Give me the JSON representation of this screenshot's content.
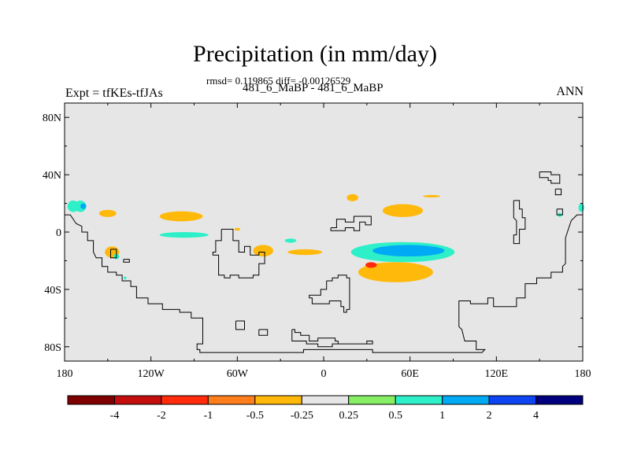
{
  "chart_data": {
    "type": "heatmap",
    "title": "Precipitation (in mm/day)",
    "stats": "rmsd= 0.119865 diff= -0.00126529",
    "subtitle": "481_6_MaBP - 481_6_MaBP",
    "left_label": "Expt = tfKEs-tfJAs",
    "right_label": "ANN",
    "x_ticks": [
      {
        "value": -180,
        "label": "180"
      },
      {
        "value": -120,
        "label": "120W"
      },
      {
        "value": -60,
        "label": "60W"
      },
      {
        "value": 0,
        "label": "0"
      },
      {
        "value": 60,
        "label": "60E"
      },
      {
        "value": 120,
        "label": "120E"
      },
      {
        "value": 180,
        "label": "180"
      }
    ],
    "y_ticks": [
      {
        "value": 80,
        "label": "80N"
      },
      {
        "value": 40,
        "label": "40N"
      },
      {
        "value": 0,
        "label": "0"
      },
      {
        "value": -40,
        "label": "40S"
      },
      {
        "value": -80,
        "label": "80S"
      }
    ],
    "xlim": [
      -180,
      180
    ],
    "ylim": [
      -90,
      90
    ],
    "background_color": "#e6e6e6",
    "colorbar": {
      "labels": [
        "-4",
        "-2",
        "-1",
        "-0.5",
        "-0.25",
        "0.25",
        "0.5",
        "1",
        "2",
        "4"
      ],
      "colors": [
        "#7f0000",
        "#c40e0e",
        "#ff2b0b",
        "#ff7e1c",
        "#ffb90a",
        "#e6e6e6",
        "#86ef64",
        "#2ef0c8",
        "#00aaf5",
        "#0d45f2",
        "#00007f"
      ]
    },
    "anomalies": [
      {
        "lon": -169,
        "lat": 18,
        "rx": 4,
        "ry": 4,
        "level": "0.5"
      },
      {
        "lon": -167,
        "lat": 18,
        "rx": 2,
        "ry": 2,
        "level": "1"
      },
      {
        "lon": -150,
        "lat": 13,
        "rx": 6,
        "ry": 2.5,
        "level": "-0.25"
      },
      {
        "lon": -99,
        "lat": 11,
        "rx": 15,
        "ry": 3.5,
        "level": "-0.25"
      },
      {
        "lon": -97,
        "lat": -2,
        "rx": 17,
        "ry": 2,
        "level": "0.5"
      },
      {
        "lon": -147,
        "lat": -14,
        "rx": 5,
        "ry": 4,
        "level": "-0.25"
      },
      {
        "lon": -60,
        "lat": 2,
        "rx": 2,
        "ry": 1,
        "level": "-0.25"
      },
      {
        "lon": -42,
        "lat": -13,
        "rx": 7,
        "ry": 4,
        "level": "-0.25"
      },
      {
        "lon": -23,
        "lat": -6,
        "rx": 4,
        "ry": 1.5,
        "level": "0.5"
      },
      {
        "lon": -13,
        "lat": -14,
        "rx": 12,
        "ry": 2,
        "level": "-0.25"
      },
      {
        "lon": 20,
        "lat": 24,
        "rx": 4,
        "ry": 2.5,
        "level": "-0.25"
      },
      {
        "lon": 55,
        "lat": 15,
        "rx": 14,
        "ry": 4.5,
        "level": "-0.25"
      },
      {
        "lon": 75,
        "lat": 25,
        "rx": 6,
        "ry": 0.8,
        "level": "-0.25"
      },
      {
        "lon": 50,
        "lat": -28,
        "rx": 26,
        "ry": 7,
        "level": "-0.25"
      },
      {
        "lon": 55,
        "lat": -14,
        "rx": 36,
        "ry": 7,
        "level": "0.5"
      },
      {
        "lon": 59,
        "lat": -13,
        "rx": 25,
        "ry": 4,
        "level": "1"
      },
      {
        "lon": 33,
        "lat": -23,
        "rx": 4,
        "ry": 2,
        "level": "-1"
      },
      {
        "lon": 164,
        "lat": 12,
        "rx": 1.5,
        "ry": 1.5,
        "level": "0.5"
      },
      {
        "lon": 179,
        "lat": 17,
        "rx": 2,
        "ry": 3,
        "level": "0.5"
      },
      {
        "lon": -174,
        "lat": 18,
        "rx": 4,
        "ry": 4,
        "level": "0.5"
      },
      {
        "lon": -144,
        "lat": -17,
        "rx": 2,
        "ry": 2,
        "level": "0.5"
      },
      {
        "lon": -138,
        "lat": -32,
        "rx": 1,
        "ry": 1,
        "level": "0.5"
      }
    ],
    "coastlines": [
      [
        [
          -180,
          12
        ],
        [
          -176,
          12
        ],
        [
          -172,
          6
        ],
        [
          -168,
          4
        ],
        [
          -168,
          0
        ],
        [
          -164,
          0
        ],
        [
          -164,
          -6
        ],
        [
          -160,
          -6
        ],
        [
          -160,
          -14
        ],
        [
          -158,
          -18
        ],
        [
          -154,
          -18
        ],
        [
          -154,
          -24
        ],
        [
          -150,
          -24
        ],
        [
          -150,
          -28
        ],
        [
          -144,
          -28
        ],
        [
          -144,
          -30
        ],
        [
          -140,
          -30
        ],
        [
          -140,
          -34
        ],
        [
          -134,
          -34
        ],
        [
          -134,
          -38
        ],
        [
          -130,
          -38
        ],
        [
          -130,
          -46
        ],
        [
          -122,
          -46
        ],
        [
          -122,
          -50
        ],
        [
          -112,
          -50
        ],
        [
          -112,
          -54
        ],
        [
          -100,
          -54
        ],
        [
          -100,
          -56
        ],
        [
          -92,
          -56
        ],
        [
          -92,
          -60
        ],
        [
          -84,
          -60
        ],
        [
          -84,
          -78
        ],
        [
          -88,
          -78
        ],
        [
          -88,
          -82
        ],
        [
          -86,
          -82
        ],
        [
          -86,
          -84
        ],
        [
          -14,
          -84
        ],
        [
          -14,
          -82
        ],
        [
          34,
          -82
        ],
        [
          34,
          -84
        ],
        [
          110,
          -84
        ],
        [
          110,
          -84
        ],
        [
          112,
          -82
        ],
        [
          106,
          -82
        ],
        [
          106,
          -76
        ],
        [
          98,
          -76
        ],
        [
          96,
          -68
        ],
        [
          94,
          -66
        ],
        [
          94,
          -48
        ],
        [
          102,
          -48
        ],
        [
          102,
          -50
        ],
        [
          114,
          -50
        ],
        [
          114,
          -46
        ],
        [
          118,
          -46
        ],
        [
          118,
          -52
        ],
        [
          134,
          -52
        ],
        [
          134,
          -46
        ],
        [
          140,
          -46
        ],
        [
          140,
          -36
        ],
        [
          148,
          -36
        ],
        [
          148,
          -32
        ],
        [
          158,
          -32
        ],
        [
          158,
          -28
        ],
        [
          166,
          -28
        ],
        [
          166,
          -24
        ],
        [
          168,
          -22
        ],
        [
          168,
          -4
        ],
        [
          170,
          2
        ],
        [
          172,
          8
        ],
        [
          176,
          12
        ],
        [
          180,
          12
        ]
      ],
      [
        [
          -71,
          2
        ],
        [
          -63,
          2
        ],
        [
          -63,
          -6
        ],
        [
          -59,
          -6
        ],
        [
          -59,
          -14
        ],
        [
          -55,
          -14
        ],
        [
          -55,
          -10
        ],
        [
          -51,
          -10
        ],
        [
          -51,
          -16
        ],
        [
          -45,
          -16
        ],
        [
          -45,
          -14
        ],
        [
          -41,
          -14
        ],
        [
          -41,
          -22
        ],
        [
          -45,
          -22
        ],
        [
          -45,
          -30
        ],
        [
          -49,
          -30
        ],
        [
          -49,
          -32
        ],
        [
          -59,
          -32
        ],
        [
          -59,
          -30
        ],
        [
          -65,
          -30
        ],
        [
          -65,
          -32
        ],
        [
          -69,
          -32
        ],
        [
          -69,
          -30
        ],
        [
          -73,
          -30
        ],
        [
          -73,
          -16
        ],
        [
          -77,
          -16
        ],
        [
          -77,
          -14
        ],
        [
          -75,
          -14
        ],
        [
          -75,
          -6
        ],
        [
          -71,
          -6
        ],
        [
          -71,
          2
        ]
      ],
      [
        [
          5,
          3
        ],
        [
          9,
          3
        ],
        [
          9,
          9
        ],
        [
          15,
          9
        ],
        [
          15,
          7
        ],
        [
          21,
          7
        ],
        [
          21,
          11
        ],
        [
          33,
          11
        ],
        [
          33,
          5
        ],
        [
          29,
          5
        ],
        [
          29,
          7
        ],
        [
          25,
          7
        ],
        [
          25,
          1
        ],
        [
          21,
          1
        ],
        [
          21,
          3
        ],
        [
          15,
          3
        ],
        [
          15,
          1
        ],
        [
          5,
          1
        ],
        [
          5,
          3
        ]
      ],
      [
        [
          2,
          -34
        ],
        [
          6,
          -34
        ],
        [
          6,
          -32
        ],
        [
          10,
          -32
        ],
        [
          10,
          -30
        ],
        [
          16,
          -30
        ],
        [
          16,
          -32
        ],
        [
          18,
          -32
        ],
        [
          18,
          -54
        ],
        [
          16,
          -54
        ],
        [
          16,
          -56
        ],
        [
          14,
          -56
        ],
        [
          14,
          -52
        ],
        [
          12,
          -52
        ],
        [
          12,
          -48
        ],
        [
          4,
          -48
        ],
        [
          4,
          -50
        ],
        [
          -8,
          -50
        ],
        [
          -8,
          -46
        ],
        [
          -10,
          -46
        ],
        [
          -10,
          -44
        ],
        [
          -2,
          -44
        ],
        [
          -2,
          -40
        ],
        [
          2,
          -40
        ],
        [
          2,
          -34
        ]
      ],
      [
        [
          -22,
          -68
        ],
        [
          -20,
          -68
        ],
        [
          -20,
          -70
        ],
        [
          -16,
          -70
        ],
        [
          -16,
          -72
        ],
        [
          -10,
          -72
        ],
        [
          -10,
          -76
        ],
        [
          -4,
          -76
        ],
        [
          -4,
          -74
        ],
        [
          8,
          -74
        ],
        [
          8,
          -76
        ],
        [
          10,
          -76
        ],
        [
          10,
          -78
        ],
        [
          30,
          -78
        ],
        [
          30,
          -76
        ],
        [
          34,
          -76
        ],
        [
          34,
          -78
        ],
        [
          6,
          -78
        ],
        [
          6,
          -80
        ],
        [
          -4,
          -80
        ],
        [
          -4,
          -78
        ],
        [
          -12,
          -78
        ],
        [
          -12,
          -76
        ],
        [
          -22,
          -76
        ],
        [
          -22,
          -68
        ]
      ],
      [
        [
          -61,
          -62
        ],
        [
          -55,
          -62
        ],
        [
          -55,
          -68
        ],
        [
          -61,
          -68
        ],
        [
          -61,
          -62
        ]
      ],
      [
        [
          -45,
          -68
        ],
        [
          -39,
          -68
        ],
        [
          -39,
          -72
        ],
        [
          -45,
          -72
        ],
        [
          -45,
          -68
        ]
      ],
      [
        [
          -148,
          -12
        ],
        [
          -144,
          -12
        ],
        [
          -144,
          -18
        ],
        [
          -148,
          -18
        ],
        [
          -148,
          -12
        ]
      ],
      [
        [
          -139,
          -19
        ],
        [
          -135,
          -19
        ],
        [
          -135,
          -21
        ],
        [
          -139,
          -21
        ],
        [
          -139,
          -19
        ]
      ],
      [
        [
          150,
          42
        ],
        [
          158,
          42
        ],
        [
          158,
          40
        ],
        [
          164,
          40
        ],
        [
          164,
          34
        ],
        [
          158,
          34
        ],
        [
          158,
          36
        ],
        [
          156,
          36
        ],
        [
          156,
          38
        ],
        [
          150,
          38
        ],
        [
          150,
          42
        ]
      ],
      [
        [
          161,
          30
        ],
        [
          165,
          30
        ],
        [
          165,
          26
        ],
        [
          161,
          26
        ],
        [
          161,
          30
        ]
      ],
      [
        [
          132,
          22
        ],
        [
          136,
          22
        ],
        [
          136,
          16
        ],
        [
          138,
          16
        ],
        [
          138,
          10
        ],
        [
          140,
          10
        ],
        [
          140,
          2
        ],
        [
          136,
          2
        ],
        [
          136,
          -8
        ],
        [
          132,
          -8
        ],
        [
          132,
          -2
        ],
        [
          134,
          -2
        ],
        [
          134,
          8
        ],
        [
          132,
          10
        ],
        [
          132,
          22
        ]
      ],
      [
        [
          162,
          16
        ],
        [
          166,
          16
        ],
        [
          166,
          12
        ],
        [
          162,
          12
        ],
        [
          162,
          16
        ]
      ]
    ]
  }
}
